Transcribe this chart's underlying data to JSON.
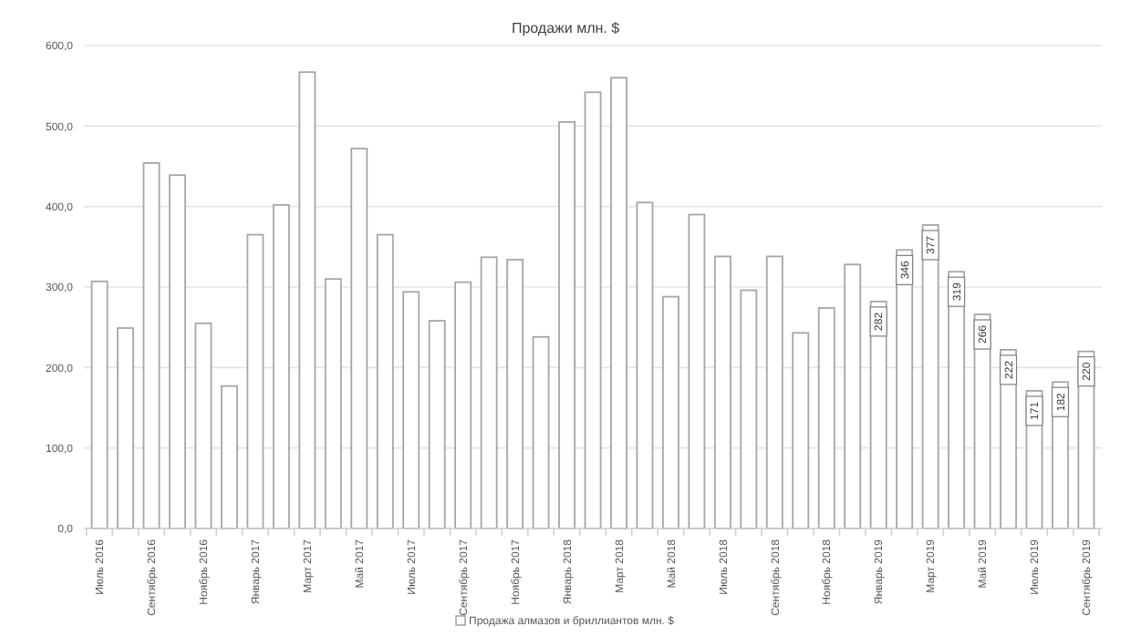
{
  "chart_data": {
    "type": "bar",
    "title": "Продажи млн. $",
    "categories": [
      "Июль 2016",
      null,
      "Сентябрь 2016",
      null,
      "Ноябрь 2016",
      null,
      "Январь 2017",
      null,
      "Март 2017",
      null,
      "Май 2017",
      null,
      "Июль 2017",
      null,
      "Сентябрь 2017",
      null,
      "Ноябрь 2017",
      null,
      "Январь 2018",
      null,
      "Март 2018",
      null,
      "Май 2018",
      null,
      "Июль 2018",
      null,
      "Сентябрь 2018",
      null,
      "Ноябрь 2018",
      null,
      "Январь 2019",
      null,
      "Март 2019",
      null,
      "Май 2019",
      null,
      "Июль 2019",
      null,
      "Сентябрь 2019"
    ],
    "series": [
      {
        "name": "Продажа алмазов и бриллиантов млн. $",
        "color": "#ffffff",
        "values": [
          307,
          249,
          454,
          439,
          255,
          177,
          365,
          402,
          567,
          310,
          472,
          365,
          294,
          258,
          306,
          337,
          334,
          238,
          505,
          542,
          560,
          405,
          288,
          390,
          338,
          296,
          338,
          243,
          274,
          328,
          282,
          346,
          377,
          319,
          266,
          222,
          171,
          182,
          220
        ],
        "value_labels": [
          null,
          null,
          null,
          null,
          null,
          null,
          null,
          null,
          null,
          null,
          null,
          null,
          null,
          null,
          null,
          null,
          null,
          null,
          null,
          null,
          null,
          null,
          null,
          null,
          null,
          null,
          null,
          null,
          null,
          null,
          "282",
          "346",
          "377",
          "319",
          "266",
          "222",
          "171",
          "182",
          "220"
        ]
      }
    ],
    "ylim": [
      0,
      600
    ],
    "yticks": [
      {
        "value": 0,
        "label": "0,0"
      },
      {
        "value": 100,
        "label": "100,0"
      },
      {
        "value": 200,
        "label": "200,0"
      },
      {
        "value": 300,
        "label": "300,0"
      },
      {
        "value": 400,
        "label": "400,0"
      },
      {
        "value": 500,
        "label": "500,0"
      },
      {
        "value": 600,
        "label": "600,0"
      }
    ],
    "grid": "y",
    "legend": "bottom"
  }
}
